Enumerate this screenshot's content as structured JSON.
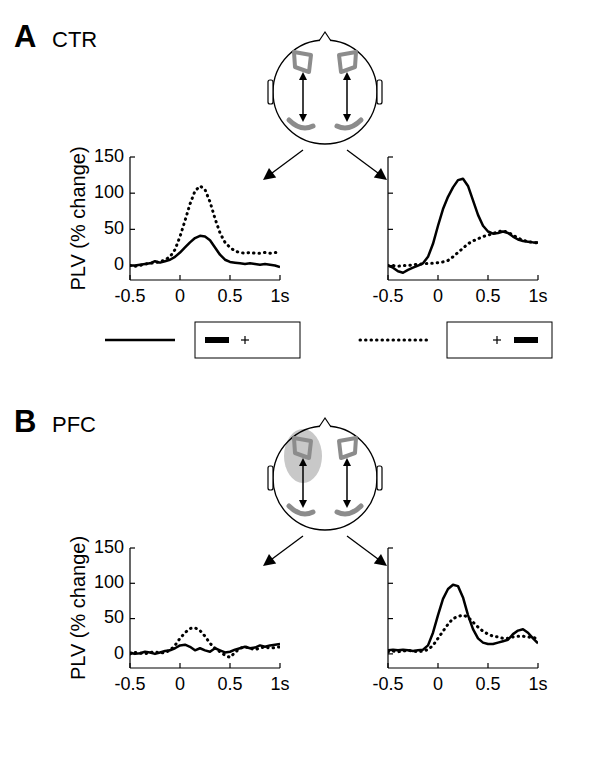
{
  "chart_data": [
    {
      "type": "line",
      "title": "CTR",
      "annotations": [
        "A"
      ],
      "y_label": "PLV (% change)",
      "legend": "bottom",
      "xlim": [
        -0.5,
        1
      ],
      "xticks": [
        -0.5,
        0,
        0.5,
        {
          "value": 1,
          "label": "1s"
        }
      ],
      "ylim": [
        -20,
        150
      ],
      "yticks": [
        0,
        50,
        100,
        150
      ],
      "x": [
        -0.5,
        -0.45,
        -0.4,
        -0.35,
        -0.3,
        -0.25,
        -0.2,
        -0.15,
        -0.1,
        -0.05,
        0,
        0.05,
        0.1,
        0.15,
        0.2,
        0.25,
        0.3,
        0.35,
        0.4,
        0.45,
        0.5,
        0.55,
        0.6,
        0.65,
        0.7,
        0.75,
        0.8,
        0.85,
        0.9,
        0.95,
        1
      ],
      "series": [
        {
          "color": "#000000",
          "line_style": "solid",
          "values": [
            0,
            0,
            1,
            2,
            3,
            6,
            4,
            6,
            8,
            12,
            18,
            25,
            32,
            38,
            41,
            40,
            35,
            25,
            15,
            8,
            5,
            4,
            3,
            2,
            3,
            2,
            1,
            2,
            1,
            0,
            -2
          ]
        },
        {
          "color": "#000000",
          "line_style": "dotted",
          "values": [
            0,
            -1,
            0,
            2,
            3,
            4,
            5,
            8,
            12,
            22,
            40,
            62,
            85,
            103,
            110,
            105,
            88,
            65,
            45,
            32,
            25,
            20,
            18,
            17,
            18,
            17,
            17,
            18,
            17,
            18,
            18
          ]
        }
      ]
    },
    {
      "type": "line",
      "tick_labels": "x",
      "xlim": [
        -0.5,
        1
      ],
      "xticks": [
        -0.5,
        0,
        0.5,
        {
          "value": 1,
          "label": "1s"
        }
      ],
      "ylim": [
        -20,
        150
      ],
      "yticks": [
        0,
        50,
        100,
        150
      ],
      "x": [
        -0.5,
        -0.45,
        -0.4,
        -0.35,
        -0.3,
        -0.25,
        -0.2,
        -0.15,
        -0.1,
        -0.05,
        0,
        0.05,
        0.1,
        0.15,
        0.2,
        0.25,
        0.3,
        0.35,
        0.4,
        0.45,
        0.5,
        0.55,
        0.6,
        0.65,
        0.7,
        0.75,
        0.8,
        0.85,
        0.9,
        0.95,
        1
      ],
      "series": [
        {
          "color": "#000000",
          "line_style": "solid",
          "values": [
            0,
            -3,
            -8,
            -10,
            -6,
            -3,
            0,
            3,
            12,
            30,
            55,
            78,
            95,
            108,
            118,
            120,
            110,
            90,
            70,
            55,
            47,
            44,
            45,
            47,
            45,
            40,
            36,
            34,
            33,
            32,
            32
          ]
        },
        {
          "color": "#000000",
          "line_style": "dotted",
          "values": [
            0,
            0,
            -1,
            0,
            0,
            1,
            2,
            2,
            3,
            3,
            4,
            5,
            7,
            12,
            18,
            24,
            30,
            34,
            37,
            40,
            42,
            44,
            47,
            48,
            46,
            42,
            38,
            35,
            33,
            32,
            31
          ]
        }
      ]
    },
    {
      "type": "line",
      "title": "PFC",
      "annotations": [
        "B"
      ],
      "y_label": "PLV (% change)",
      "xlim": [
        -0.5,
        1
      ],
      "xticks": [
        -0.5,
        0,
        0.5,
        {
          "value": 1,
          "label": "1s"
        }
      ],
      "ylim": [
        -20,
        150
      ],
      "yticks": [
        0,
        50,
        100,
        150
      ],
      "x": [
        -0.5,
        -0.45,
        -0.4,
        -0.35,
        -0.3,
        -0.25,
        -0.2,
        -0.15,
        -0.1,
        -0.05,
        0,
        0.05,
        0.1,
        0.15,
        0.2,
        0.25,
        0.3,
        0.35,
        0.4,
        0.45,
        0.5,
        0.55,
        0.6,
        0.65,
        0.7,
        0.75,
        0.8,
        0.85,
        0.9,
        0.95,
        1
      ],
      "series": [
        {
          "color": "#000000",
          "line_style": "solid",
          "values": [
            2,
            0,
            1,
            3,
            2,
            0,
            2,
            4,
            5,
            8,
            12,
            13,
            10,
            5,
            8,
            5,
            3,
            8,
            5,
            2,
            3,
            6,
            8,
            10,
            8,
            9,
            12,
            10,
            12,
            13,
            14
          ]
        },
        {
          "color": "#000000",
          "line_style": "dotted",
          "values": [
            0,
            2,
            1,
            0,
            2,
            3,
            1,
            2,
            5,
            12,
            22,
            30,
            36,
            37,
            33,
            25,
            15,
            8,
            3,
            -2,
            -5,
            2,
            8,
            10,
            8,
            6,
            8,
            10,
            8,
            9,
            10
          ]
        }
      ]
    },
    {
      "type": "line",
      "tick_labels": "x",
      "xlim": [
        -0.5,
        1
      ],
      "xticks": [
        -0.5,
        0,
        0.5,
        {
          "value": 1,
          "label": "1s"
        }
      ],
      "ylim": [
        -20,
        150
      ],
      "yticks": [
        0,
        50,
        100,
        150
      ],
      "x": [
        -0.5,
        -0.45,
        -0.4,
        -0.35,
        -0.3,
        -0.25,
        -0.2,
        -0.15,
        -0.1,
        -0.05,
        0,
        0.05,
        0.1,
        0.15,
        0.2,
        0.25,
        0.3,
        0.35,
        0.4,
        0.45,
        0.5,
        0.55,
        0.6,
        0.65,
        0.7,
        0.75,
        0.8,
        0.85,
        0.9,
        0.95,
        1
      ],
      "series": [
        {
          "color": "#000000",
          "line_style": "solid",
          "values": [
            5,
            6,
            5,
            6,
            5,
            4,
            5,
            6,
            12,
            30,
            55,
            78,
            92,
            98,
            96,
            80,
            55,
            35,
            22,
            16,
            14,
            14,
            16,
            18,
            20,
            28,
            33,
            35,
            30,
            22,
            15
          ]
        },
        {
          "color": "#000000",
          "line_style": "dotted",
          "values": [
            3,
            4,
            3,
            4,
            5,
            4,
            3,
            4,
            6,
            12,
            22,
            32,
            42,
            50,
            53,
            55,
            52,
            45,
            38,
            32,
            28,
            25,
            24,
            22,
            22,
            24,
            25,
            25,
            24,
            23,
            22
          ]
        }
      ]
    }
  ]
}
